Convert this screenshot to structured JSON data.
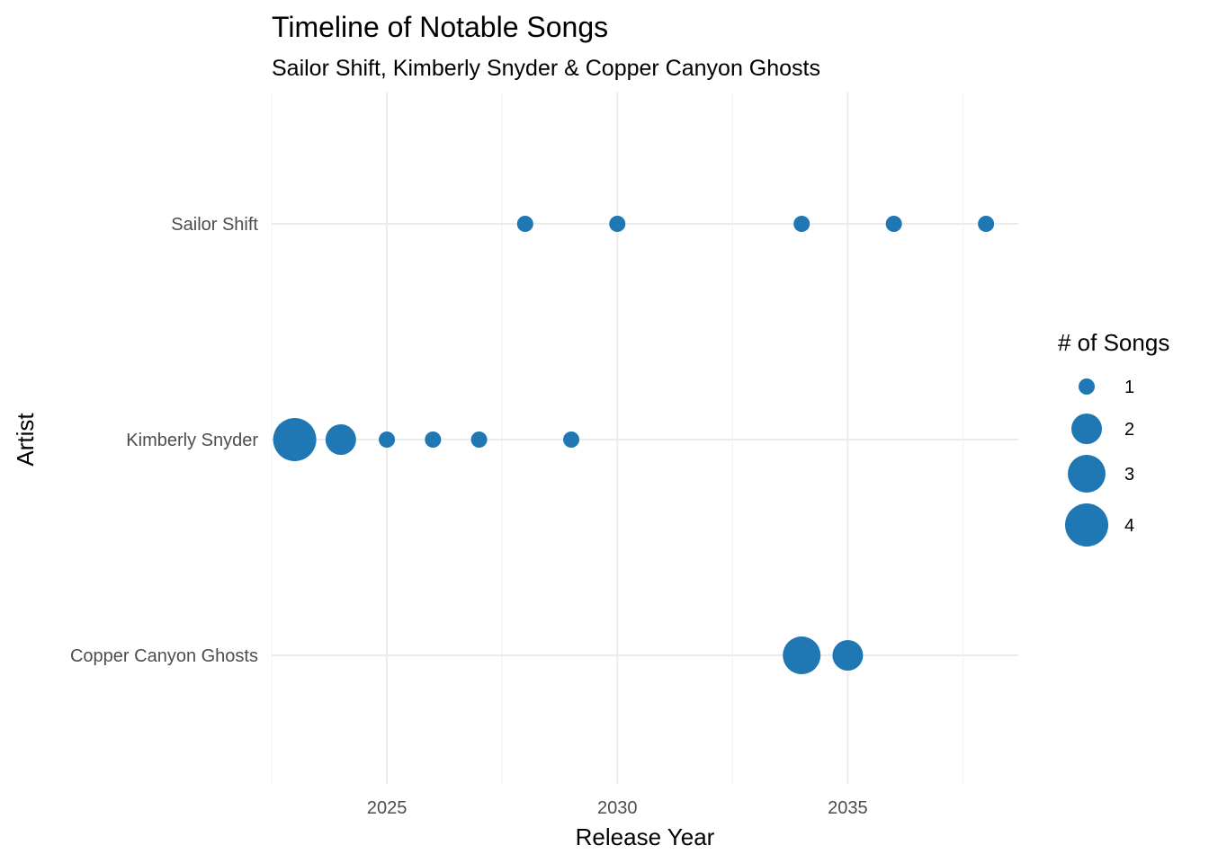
{
  "chart_data": {
    "type": "scatter",
    "title": "Timeline of Notable Songs",
    "subtitle": "Sailor Shift, Kimberly Snyder & Copper Canyon Ghosts",
    "xlabel": "Release Year",
    "ylabel": "Artist",
    "xlim": [
      2022.5,
      2038.7
    ],
    "x_ticks": [
      2025,
      2030,
      2035
    ],
    "x_minor": [
      2022.5,
      2027.5,
      2032.5,
      2037.5
    ],
    "categories": [
      "Sailor Shift",
      "Kimberly Snyder",
      "Copper Canyon Ghosts"
    ],
    "grid": true,
    "point_color": "#1f77b4",
    "points": [
      {
        "artist": "Sailor Shift",
        "year": 2028,
        "count": 1
      },
      {
        "artist": "Sailor Shift",
        "year": 2030,
        "count": 1
      },
      {
        "artist": "Sailor Shift",
        "year": 2034,
        "count": 1
      },
      {
        "artist": "Sailor Shift",
        "year": 2036,
        "count": 1
      },
      {
        "artist": "Sailor Shift",
        "year": 2038,
        "count": 1
      },
      {
        "artist": "Kimberly Snyder",
        "year": 2023,
        "count": 4
      },
      {
        "artist": "Kimberly Snyder",
        "year": 2024,
        "count": 2
      },
      {
        "artist": "Kimberly Snyder",
        "year": 2025,
        "count": 1
      },
      {
        "artist": "Kimberly Snyder",
        "year": 2026,
        "count": 1
      },
      {
        "artist": "Kimberly Snyder",
        "year": 2027,
        "count": 1
      },
      {
        "artist": "Kimberly Snyder",
        "year": 2029,
        "count": 1
      },
      {
        "artist": "Copper Canyon Ghosts",
        "year": 2034,
        "count": 3
      },
      {
        "artist": "Copper Canyon Ghosts",
        "year": 2035,
        "count": 2
      }
    ],
    "legend": {
      "title": "# of Songs",
      "position": "right",
      "entries": [
        1,
        2,
        3,
        4
      ]
    }
  }
}
